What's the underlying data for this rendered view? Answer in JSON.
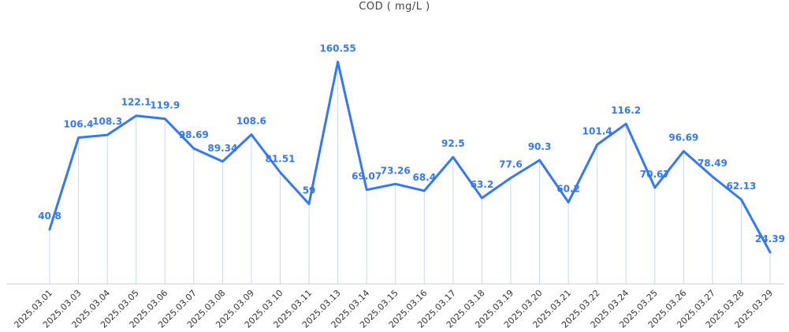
{
  "chart_data": {
    "type": "line",
    "title": "COD ( mg/L )",
    "x": [
      "2025.03.01",
      "2025.03.03",
      "2025.03.04",
      "2025.03.05",
      "2025.03.06",
      "2025.03.07",
      "2025.03.08",
      "2025.03.09",
      "2025.03.10",
      "2025.03.11",
      "2025.03.13",
      "2025.03.14",
      "2025.03.15",
      "2025.03.16",
      "2025.03.17",
      "2025.03.18",
      "2025.03.19",
      "2025.03.20",
      "2025.03.21",
      "2025.03.22",
      "2025.03.24",
      "2025.03.25",
      "2025.03.26",
      "2025.03.27",
      "2025.03.28",
      "2025.03.29"
    ],
    "series": [
      {
        "values": [
          40.8,
          106.4,
          108.3,
          122.1,
          119.9,
          98.69,
          89.34,
          108.6,
          81.51,
          59,
          160.55,
          69.07,
          73.26,
          68.4,
          92.5,
          63.2,
          77.6,
          90.3,
          60.2,
          101.4,
          116.2,
          70.67,
          96.69,
          78.49,
          62.13,
          24.39
        ],
        "labels": [
          "40.8",
          "106.4",
          "108.3",
          "122.1",
          "119.9",
          "98.69",
          "89.34",
          "108.6",
          "81.51",
          "59",
          "160.55",
          "69.07",
          "73.26",
          "68.4",
          "92.5",
          "63.2",
          "77.6",
          "90.3",
          "60.2",
          "101.4",
          "116.2",
          "70.67",
          "96.69",
          "78.49",
          "62.13",
          "24.39"
        ]
      }
    ],
    "ylim": [
      0,
      175
    ],
    "grid": false,
    "drop_lines": true,
    "line_color": "#3478f6",
    "drop_line_color": "#c9d7ef",
    "axis_color": "#cccccc"
  }
}
